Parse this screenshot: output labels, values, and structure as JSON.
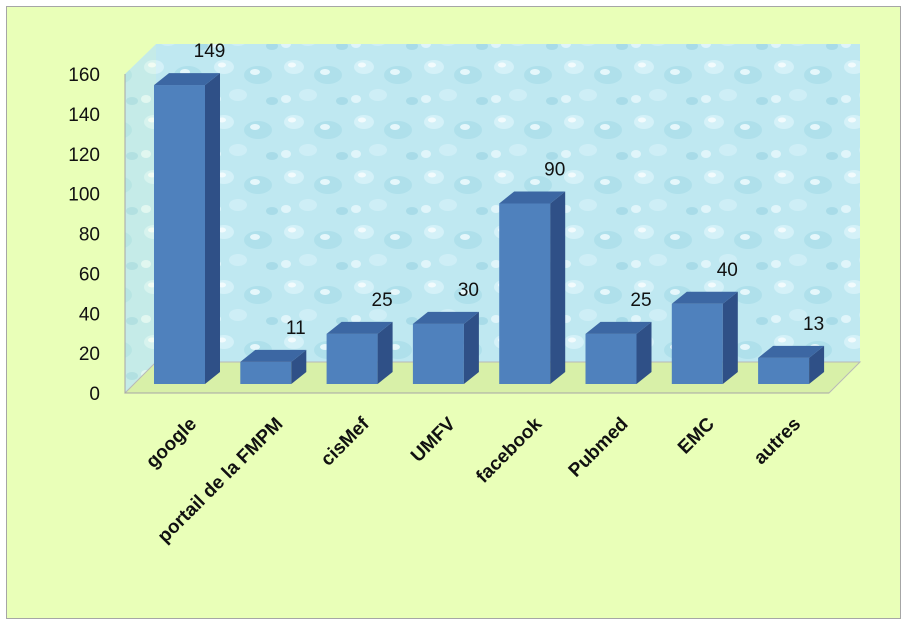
{
  "chart_data": {
    "type": "bar",
    "categories": [
      "google",
      "portail de la FMPM",
      "cisMef",
      "UMFV",
      "facebook",
      "Pubmed",
      "EMC",
      "autres"
    ],
    "values": [
      149,
      11,
      25,
      30,
      90,
      25,
      40,
      13
    ],
    "title": "",
    "xlabel": "",
    "ylabel": "",
    "ylim": [
      0,
      160
    ],
    "yticks": [
      0,
      20,
      40,
      60,
      80,
      100,
      120,
      140,
      160
    ],
    "grid": false,
    "legend": "none",
    "colors": {
      "bar_front": "#4f81bd",
      "bar_side": "#2f5087",
      "bar_top": "#3c67a3",
      "plot_background": "#bfe7f0",
      "chart_background": "#e9ffb8"
    }
  }
}
